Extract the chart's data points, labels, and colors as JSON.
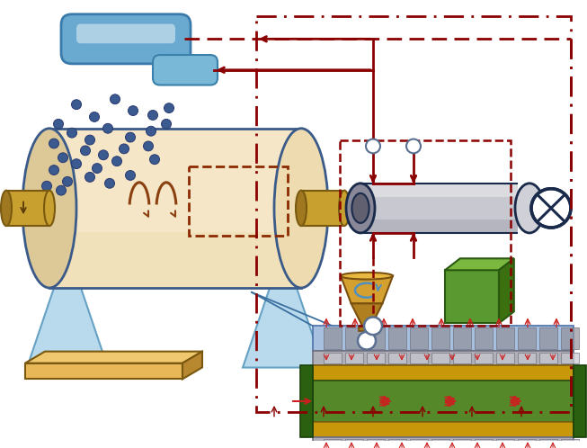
{
  "bg": "#ffffff",
  "cyl_fill": "#f5e6c8",
  "cyl_fill2": "#eeddb0",
  "cyl_border": "#3a5a8a",
  "axle_fill": "#c8a030",
  "axle_border": "#7a5a10",
  "support_fill": "#a8d0e8",
  "support_border": "#4a90b8",
  "dot_fill": "#3a5a90",
  "dot_border": "#2a3a70",
  "cap_fill": "#6aaad0",
  "cap_border": "#3a7aaa",
  "cap2_fill": "#7ab8d8",
  "cap2_border": "#3a80a8",
  "pipe_fill": "#c8c8d0",
  "pipe_fill2": "#a0a0b8",
  "pipe_border": "#1a2a4a",
  "motor_fill": "#ffffff",
  "motor_border": "#1a2a4a",
  "hopper_fill": "#c89830",
  "hopper_fill2": "#a87020",
  "hopper_border": "#7a5010",
  "cube_front": "#5a9830",
  "cube_top": "#7ab840",
  "cube_side": "#3a7010",
  "cube_border": "#2a5810",
  "plate_fill": "#e8b858",
  "plate_top": "#f0c870",
  "plate_side": "#b88830",
  "plate_border": "#7a5810",
  "layer_blue": "#a8c8e8",
  "layer_gray": "#b8b8c0",
  "layer_gold": "#d0a030",
  "layer_green": "#5a8828",
  "layer_green2": "#6a9830",
  "layer_border_blue": "#4a70a8",
  "layer_border_gray": "#707080",
  "layer_border_gold": "#806010",
  "layer_border_green": "#2a5010",
  "clamp_fill": "#2a6010",
  "clamp_border": "#1a4008",
  "red": "#8b0000",
  "red2": "#cc2020",
  "blue_line": "#3a70a0",
  "valve_fill": "#ffffff",
  "valve_border": "#5a7090"
}
